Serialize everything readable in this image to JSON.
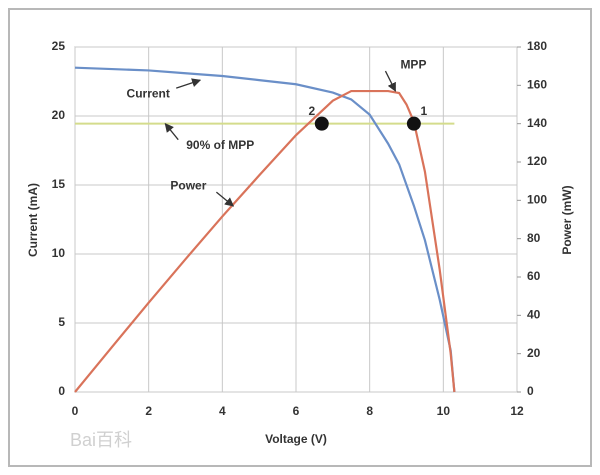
{
  "chart_data": {
    "type": "line",
    "x_label": "Voltage (V)",
    "y_label": "Current (mA)",
    "y2_label": "Power (mW)",
    "x": [
      0,
      1,
      2,
      3,
      4,
      5,
      6,
      7,
      7.5,
      8,
      8.5,
      8.8,
      9,
      9.2,
      9.5,
      9.9,
      10.2,
      10.3
    ],
    "series": [
      {
        "name": "Current",
        "color": "#6a8fc8",
        "axis": "y",
        "values": [
          23.5,
          23.4,
          23.3,
          23.1,
          22.9,
          22.6,
          22.3,
          21.7,
          21.2,
          20.1,
          18,
          16.5,
          15,
          13.5,
          11,
          6.7,
          3,
          0
        ]
      },
      {
        "name": "Power",
        "color": "#d9735a",
        "axis": "y2",
        "values": [
          0,
          23.4,
          46.6,
          69.3,
          91.6,
          113,
          134,
          152,
          157,
          157,
          157,
          156,
          150,
          141,
          115,
          64,
          20,
          0
        ]
      }
    ],
    "reference_line": {
      "text": "90% of MPP",
      "value": 140,
      "axis": "y2",
      "x_end": 10.3,
      "color": "#d4dc8c"
    },
    "annotations": [
      {
        "text": "Current",
        "x": 3.4,
        "y": 22.6,
        "axis": "y"
      },
      {
        "text": "Power",
        "x": 4.3,
        "y": 97,
        "axis": "y2"
      },
      {
        "text": "MPP",
        "x": 8.7,
        "y": 157,
        "axis": "y2"
      },
      {
        "text": "90% of MPP",
        "x": 2.45,
        "y": 140,
        "axis": "y2"
      }
    ],
    "markers": [
      {
        "label": "2",
        "x": 6.7,
        "y": 140,
        "axis": "y2"
      },
      {
        "label": "1",
        "x": 9.2,
        "y": 140,
        "axis": "y2"
      }
    ],
    "xlim": [
      0,
      12
    ],
    "xticks": [
      0,
      2,
      4,
      6,
      8,
      10,
      12
    ],
    "ylim": [
      0,
      25
    ],
    "yticks": [
      0,
      5,
      10,
      15,
      20,
      25
    ],
    "y2lim": [
      0,
      180
    ],
    "y2ticks": [
      0,
      20,
      40,
      60,
      80,
      100,
      120,
      140,
      160,
      180
    ],
    "grid": true,
    "watermark": "Bai百科"
  }
}
